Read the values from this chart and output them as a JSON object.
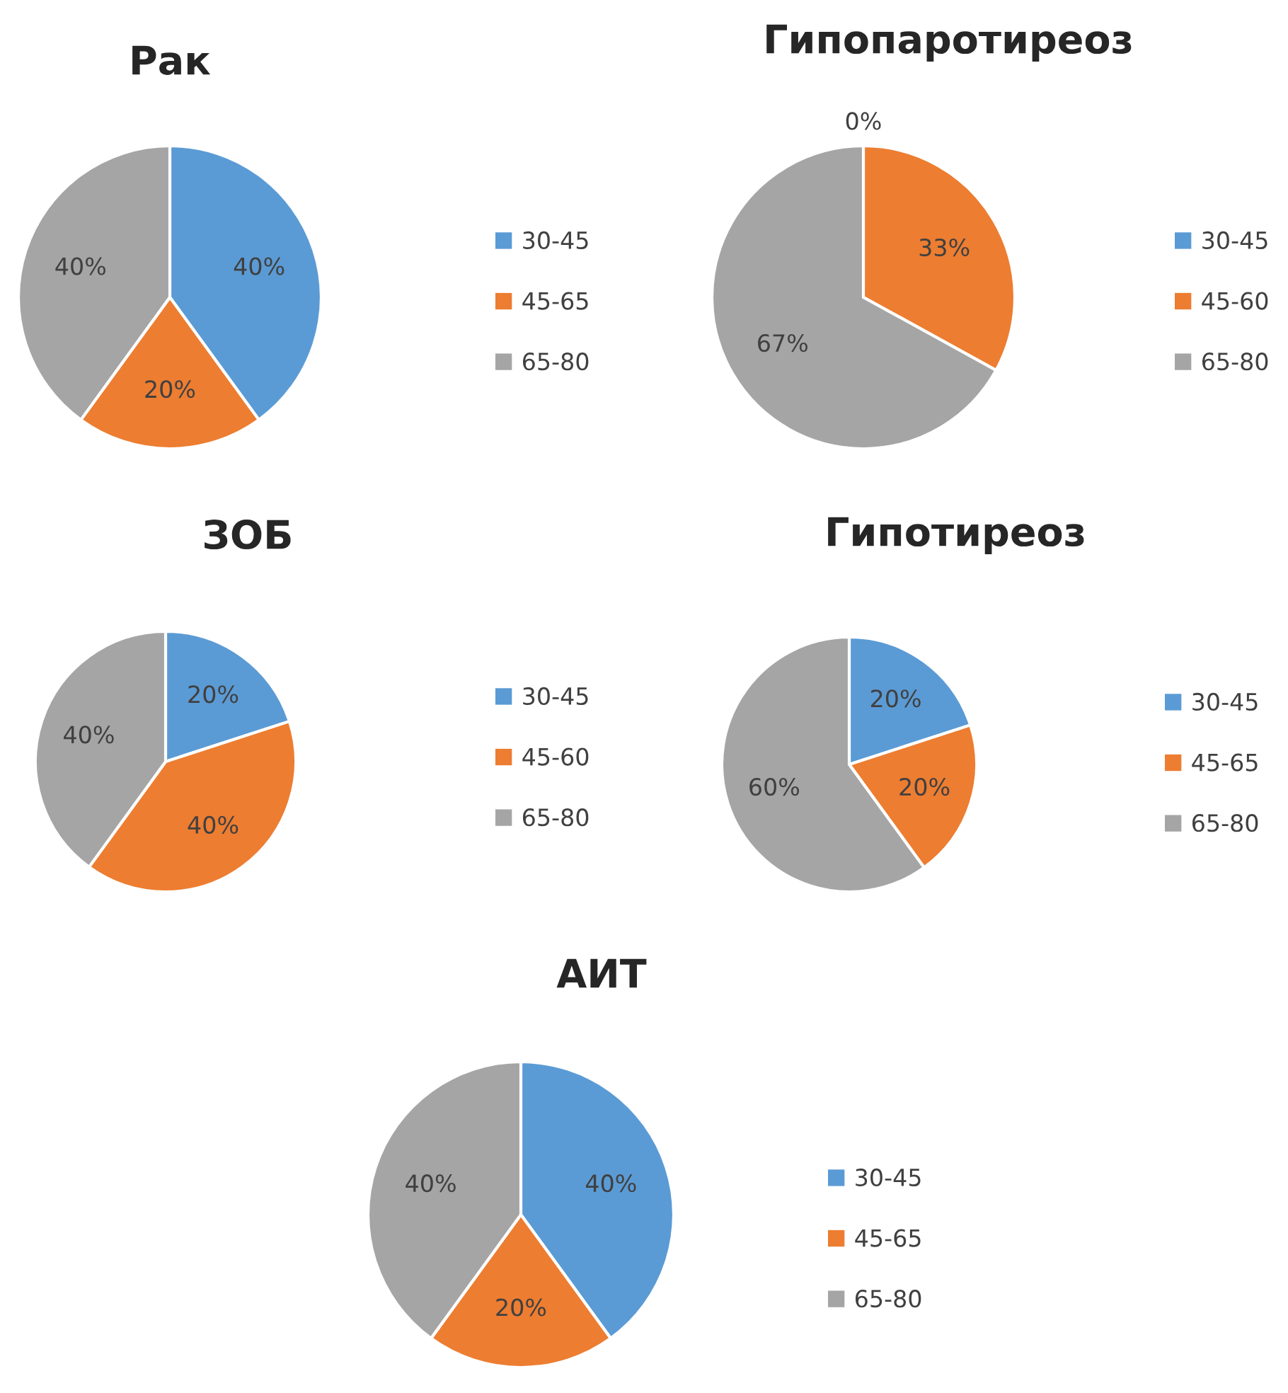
{
  "chart_data": [
    {
      "type": "pie",
      "title": "Рак",
      "categories": [
        "30-45",
        "45-65",
        "65-80"
      ],
      "values": [
        40,
        20,
        40
      ],
      "colors": [
        "#5b9bd5",
        "#ed7d31",
        "#a5a5a5"
      ],
      "value_labels": [
        "40%",
        "20%",
        "40%"
      ],
      "legend": "right"
    },
    {
      "type": "pie",
      "title": "Гипопаротиреоз",
      "categories": [
        "30-45",
        "45-60",
        "65-80"
      ],
      "values": [
        0,
        33,
        67
      ],
      "colors": [
        "#5b9bd5",
        "#ed7d31",
        "#a5a5a5"
      ],
      "value_labels": [
        "0%",
        "33%",
        "67%"
      ],
      "legend": "right"
    },
    {
      "type": "pie",
      "title": "ЗОБ",
      "categories": [
        "30-45",
        "45-60",
        "65-80"
      ],
      "values": [
        20,
        40,
        40
      ],
      "colors": [
        "#5b9bd5",
        "#ed7d31",
        "#a5a5a5"
      ],
      "value_labels": [
        "20%",
        "40%",
        "40%"
      ],
      "legend": "right"
    },
    {
      "type": "pie",
      "title": "Гипотиреоз",
      "categories": [
        "30-45",
        "45-65",
        "65-80"
      ],
      "values": [
        20,
        20,
        60
      ],
      "colors": [
        "#5b9bd5",
        "#ed7d31",
        "#a5a5a5"
      ],
      "value_labels": [
        "20%",
        "20%",
        "60%"
      ],
      "legend": "right"
    },
    {
      "type": "pie",
      "title": "АИТ",
      "categories": [
        "30-45",
        "45-65",
        "65-80"
      ],
      "values": [
        40,
        20,
        40
      ],
      "colors": [
        "#5b9bd5",
        "#ed7d31",
        "#a5a5a5"
      ],
      "value_labels": [
        "40%",
        "20%",
        "40%"
      ],
      "legend": "right"
    }
  ]
}
